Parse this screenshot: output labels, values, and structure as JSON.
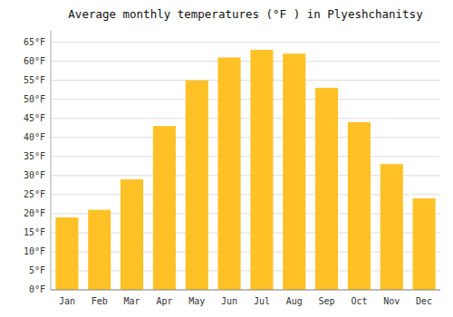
{
  "chart_data": {
    "type": "bar",
    "title": "Average monthly temperatures (°F ) in Plyeshchanitsy",
    "categories": [
      "Jan",
      "Feb",
      "Mar",
      "Apr",
      "May",
      "Jun",
      "Jul",
      "Aug",
      "Sep",
      "Oct",
      "Nov",
      "Dec"
    ],
    "values": [
      19,
      21,
      29,
      43,
      55,
      61,
      63,
      62,
      53,
      44,
      33,
      24
    ],
    "color": "#FFC125",
    "ylim": [
      0,
      68
    ],
    "yticks": [
      {
        "value": 0,
        "label": "0°F"
      },
      {
        "value": 5,
        "label": "5°F"
      },
      {
        "value": 10,
        "label": "10°F"
      },
      {
        "value": 15,
        "label": "15°F"
      },
      {
        "value": 20,
        "label": "20°F"
      },
      {
        "value": 25,
        "label": "25°F"
      },
      {
        "value": 30,
        "label": "30°F"
      },
      {
        "value": 35,
        "label": "35°F"
      },
      {
        "value": 40,
        "label": "40°F"
      },
      {
        "value": 45,
        "label": "45°F"
      },
      {
        "value": 50,
        "label": "50°F"
      },
      {
        "value": 55,
        "label": "55°F"
      },
      {
        "value": 60,
        "label": "60°F"
      },
      {
        "value": 65,
        "label": "65°F"
      }
    ],
    "grid": true
  }
}
